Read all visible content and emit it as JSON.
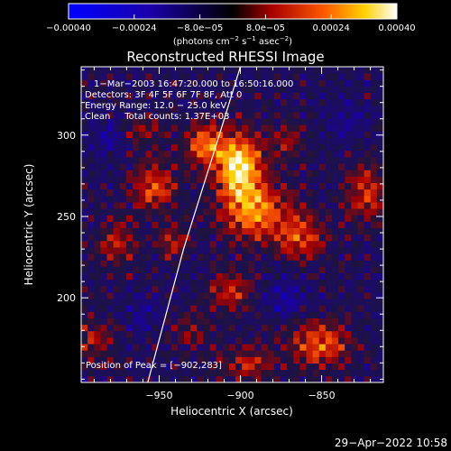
{
  "chart_data": {
    "type": "heatmap",
    "title": "Reconstructed RHESSI Image",
    "xlabel": "Heliocentric X (arcsec)",
    "ylabel": "Heliocentric Y (arcsec)",
    "xlim": [
      -998,
      -812
    ],
    "ylim": [
      148,
      342
    ],
    "x_ticks": [
      -950,
      -900,
      -850
    ],
    "y_ticks": [
      200,
      250,
      300
    ],
    "x_tick_labels": [
      "−950",
      "−900",
      "−850"
    ],
    "y_tick_labels": [
      "200",
      "250",
      "300"
    ],
    "colorbar": {
      "range": [
        -0.0004,
        0.0004
      ],
      "tick_values": [
        -0.0004,
        -0.00024,
        -8e-05,
        8e-05,
        0.00024,
        0.0004
      ],
      "tick_labels": [
        "−0.00040",
        "−0.00024",
        "−8.0e−05",
        "8.0e−05",
        "0.00024",
        "0.00040"
      ],
      "unit_prefix": "(photons cm",
      "unit_exp1": "−2",
      "unit_mid1": " s",
      "unit_exp2": "−1",
      "unit_mid2": " asec",
      "unit_exp3": "−2",
      "unit_suffix": ")"
    },
    "annotations": [
      "1−Mar−2003 16:47:20.000 to 16:50:16.000",
      "Detectors: 3F 4F 5F 6F 7F 8F, Att 0",
      "Energy Range: 12.0 − 25.0 keV",
      "Clean     Total counts: 1.37E+03"
    ],
    "peak_label": "Position of Peak = [−902,283]",
    "peak": [
      -902,
      283
    ],
    "limb_arc": [
      [
        -957,
        148
      ],
      [
        -935,
        230
      ],
      [
        -913,
        300
      ],
      [
        -900,
        342
      ]
    ],
    "sources": [
      {
        "x": -900,
        "y": 283,
        "sx": 10,
        "sy": 14,
        "amp": 0.00042
      },
      {
        "x": -890,
        "y": 255,
        "sx": 14,
        "sy": 12,
        "amp": 0.0003
      },
      {
        "x": -922,
        "y": 296,
        "sx": 8,
        "sy": 9,
        "amp": 0.00026
      },
      {
        "x": -953,
        "y": 270,
        "sx": 9,
        "sy": 10,
        "amp": 0.00024
      },
      {
        "x": -862,
        "y": 238,
        "sx": 10,
        "sy": 10,
        "amp": 0.00022
      },
      {
        "x": -820,
        "y": 265,
        "sx": 9,
        "sy": 12,
        "amp": 0.0002
      },
      {
        "x": -850,
        "y": 172,
        "sx": 13,
        "sy": 10,
        "amp": 0.00024
      },
      {
        "x": -905,
        "y": 205,
        "sx": 9,
        "sy": 8,
        "amp": 0.00018
      },
      {
        "x": -975,
        "y": 235,
        "sx": 8,
        "sy": 10,
        "amp": 0.00016
      },
      {
        "x": -895,
        "y": 160,
        "sx": 12,
        "sy": 7,
        "amp": 0.00016
      },
      {
        "x": -940,
        "y": 235,
        "sx": 7,
        "sy": 8,
        "amp": 0.00015
      },
      {
        "x": -960,
        "y": 305,
        "sx": 8,
        "sy": 7,
        "amp": 0.00012
      },
      {
        "x": -990,
        "y": 175,
        "sx": 8,
        "sy": 10,
        "amp": 0.00014
      },
      {
        "x": -870,
        "y": 300,
        "sx": 7,
        "sy": 8,
        "amp": 0.00012
      },
      {
        "x": -930,
        "y": 180,
        "sx": 8,
        "sy": 7,
        "amp": 0.00013
      },
      {
        "x": -960,
        "y": 190,
        "sx": 7,
        "sy": 8,
        "amp": -0.0001
      },
      {
        "x": -870,
        "y": 200,
        "sx": 9,
        "sy": 9,
        "amp": -0.00012
      },
      {
        "x": -835,
        "y": 310,
        "sx": 9,
        "sy": 9,
        "amp": -0.0001
      },
      {
        "x": -980,
        "y": 300,
        "sx": 8,
        "sy": 8,
        "amp": -0.0001
      }
    ]
  },
  "timestamp": "29−Apr−2022 10:58"
}
